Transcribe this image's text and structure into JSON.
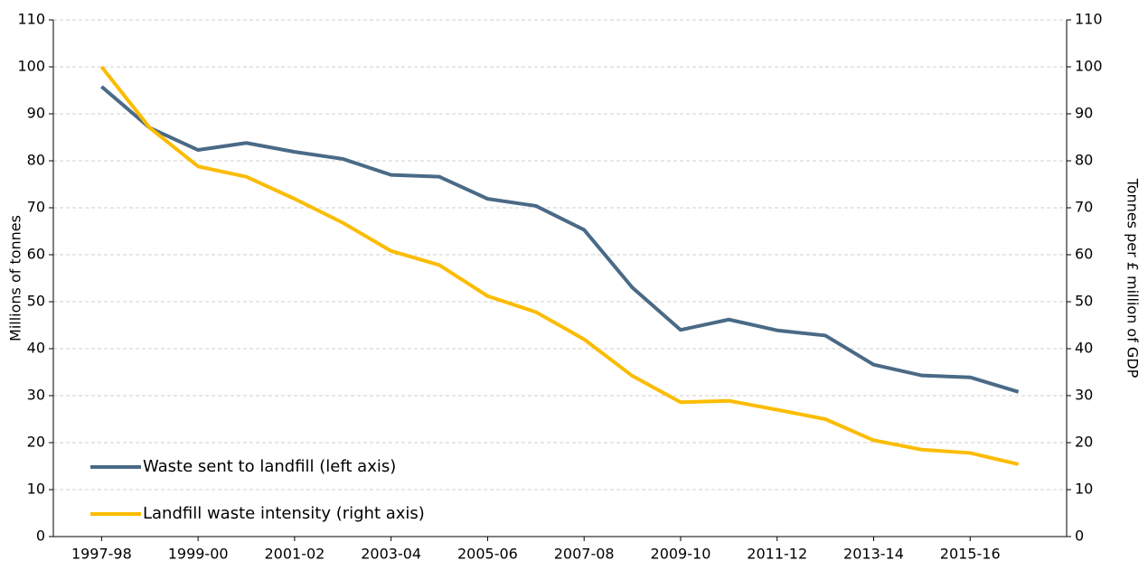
{
  "chart_data": {
    "type": "line",
    "y_label": "Millions of tonnes",
    "y2_label": "Tonnes per £ million of GDP",
    "categories": [
      "1997-98",
      null,
      "1999-00",
      null,
      "2001-02",
      null,
      "2003-04",
      null,
      "2005-06",
      null,
      "2007-08",
      null,
      "2009-10",
      null,
      "2011-12",
      null,
      "2013-14",
      null,
      "2015-16",
      null
    ],
    "series": [
      {
        "name": "Waste sent to landfill (left axis)",
        "color": "#4a6a86",
        "values": [
          95.8,
          87,
          82.3,
          83.8,
          81.9,
          80.4,
          77,
          76.6,
          71.9,
          70.4,
          65.3,
          53,
          44,
          46.2,
          43.9,
          42.8,
          36.6,
          34.3,
          33.9,
          30.8
        ]
      },
      {
        "name": "Landfill waste intensity (right axis)",
        "color": "#fbbc00",
        "axis": "y2",
        "values": [
          100,
          87,
          78.8,
          76.6,
          71.9,
          66.8,
          60.8,
          57.8,
          51.2,
          47.8,
          42,
          34.2,
          28.6,
          28.9,
          27,
          25,
          20.5,
          18.5,
          17.8,
          15.4
        ]
      }
    ],
    "ylim": [
      0,
      110
    ],
    "yticks": [
      0,
      10,
      20,
      30,
      40,
      50,
      60,
      70,
      80,
      90,
      100,
      110
    ],
    "y2lim": [
      0,
      110
    ],
    "y2ticks": [
      0,
      10,
      20,
      30,
      40,
      50,
      60,
      70,
      80,
      90,
      100,
      110
    ],
    "grid": true,
    "legend": "lower left"
  }
}
